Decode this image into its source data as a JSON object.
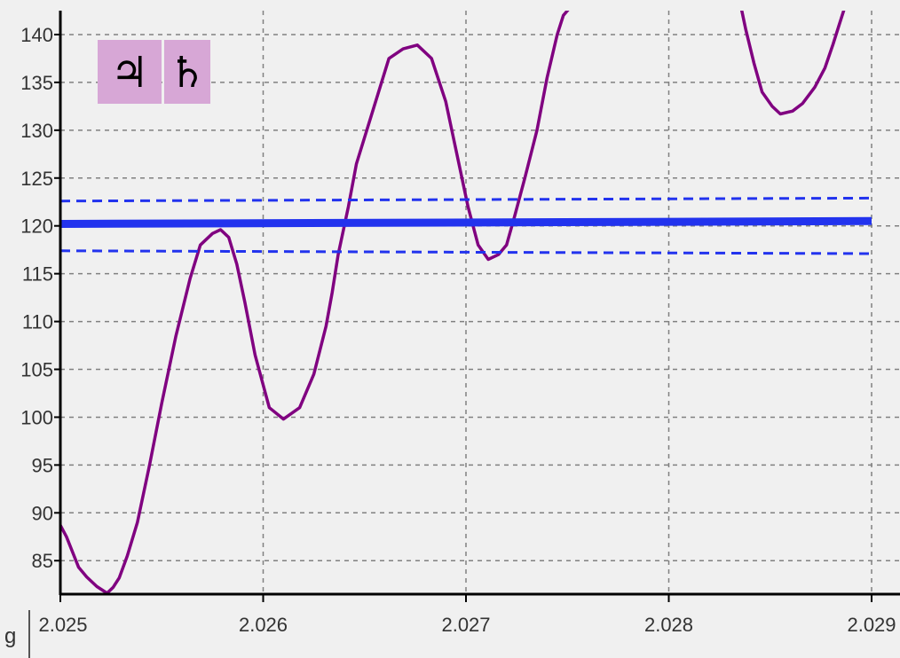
{
  "chart_data": {
    "type": "line",
    "title": "",
    "xlabel": "",
    "ylabel": "",
    "xlim": [
      2.025,
      2.029
    ],
    "ylim": [
      81.5,
      142.5
    ],
    "grid": true,
    "x_ticks": [
      2.025,
      2.026,
      2.027,
      2.028,
      2.029
    ],
    "x_tick_labels": [
      "2.025",
      "2.026",
      "2.027",
      "2.028",
      "2.029"
    ],
    "y_ticks": [
      85,
      90,
      95,
      100,
      105,
      110,
      115,
      120,
      125,
      130,
      135,
      140
    ],
    "y_tick_labels": [
      "85",
      "90",
      "95",
      "100",
      "105",
      "110",
      "115",
      "120",
      "125",
      "130",
      "135",
      "140"
    ],
    "corner_label": "g",
    "glyph_icons": [
      "jupiter-glyph-icon",
      "saturn-glyph-icon"
    ],
    "glyphs": [
      "♃",
      "♄"
    ],
    "series": [
      {
        "color": "#800080",
        "segments": [
          {
            "x": [
              2.025,
              2.02503,
              2.02509,
              2.02513,
              2.02518,
              2.02523,
              2.02526,
              2.02529,
              2.02533,
              2.02538,
              2.02544,
              2.0255,
              2.02557,
              2.02564,
              2.02569,
              2.02575,
              2.02579,
              2.02583,
              2.02587,
              2.02591,
              2.02596,
              2.02603,
              2.0261,
              2.02618,
              2.02625,
              2.02631,
              2.02634,
              2.02637,
              2.02642,
              2.02646,
              2.02654,
              2.02662,
              2.02669,
              2.02676,
              2.02683,
              2.0269,
              2.02696,
              2.02701,
              2.02706,
              2.02711,
              2.02716,
              2.0272,
              2.02724,
              2.02729,
              2.02735,
              2.0274,
              2.02745,
              2.02748,
              2.02752,
              2.02756,
              2.02761,
              2.02768,
              2.02775,
              2.02781,
              2.02785
            ],
            "y": [
              88.7,
              87.5,
              84.3,
              83.3,
              82.3,
              81.6,
              82.2,
              83.2,
              85.5,
              89.0,
              95.0,
              101.5,
              108.5,
              114.5,
              118.0,
              119.2,
              119.6,
              118.8,
              116.0,
              112.0,
              106.5,
              101.0,
              99.8,
              101.0,
              104.5,
              109.5,
              113.0,
              117.0,
              122.0,
              126.5,
              132.0,
              137.5,
              138.5,
              138.9,
              137.5,
              133.0,
              127.0,
              122.0,
              118.0,
              116.5,
              117.0,
              118.0,
              121.0,
              125.0,
              130.0,
              135.5,
              140.0,
              142.0,
              143.0,
              144.5,
              146.0,
              146.5,
              146.0,
              145.0,
              144.0
            ]
          },
          {
            "x": [
              2.0283,
              2.02834,
              2.02838,
              2.02842,
              2.02846,
              2.02851,
              2.02855,
              2.02861,
              2.02866,
              2.02872,
              2.02877,
              2.02881,
              2.02884,
              2.02887,
              2.0289
            ],
            "y": [
              148.0,
              144.5,
              140.5,
              137.0,
              134.0,
              132.5,
              131.7,
              132.0,
              132.8,
              134.5,
              136.5,
              139.0,
              141.0,
              143.0,
              145.0
            ]
          }
        ]
      },
      {
        "color": "#2233ee",
        "style": "solid",
        "x": [
          2.025,
          2.029
        ],
        "y": [
          120.2,
          120.5
        ]
      },
      {
        "color": "#2233ee",
        "style": "dashed",
        "x": [
          2.025,
          2.029
        ],
        "y": [
          122.6,
          122.9
        ]
      },
      {
        "color": "#2233ee",
        "style": "dashed",
        "x": [
          2.025,
          2.029
        ],
        "y": [
          117.4,
          117.1
        ]
      }
    ]
  }
}
